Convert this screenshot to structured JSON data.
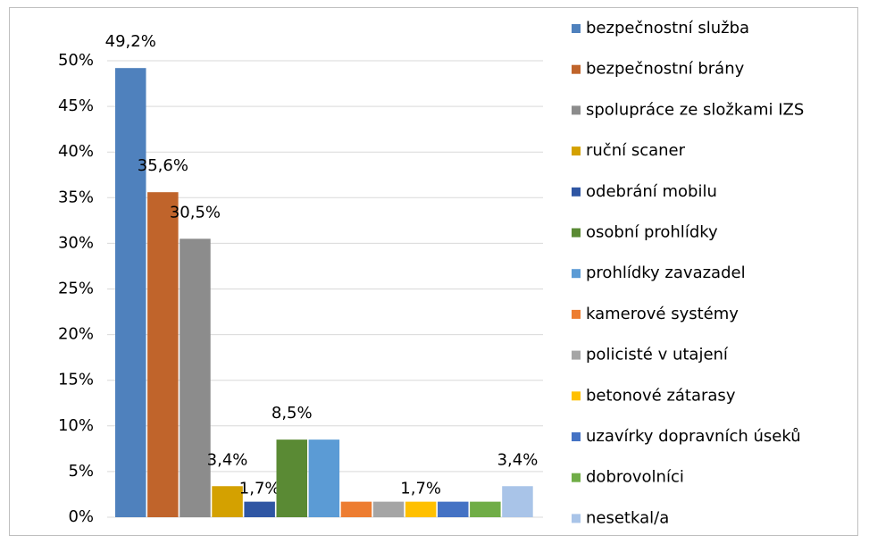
{
  "chart_data": {
    "type": "bar",
    "series": [
      {
        "name": "bezpečnostní služba",
        "color": "#4f81bd",
        "values": [
          49.2
        ],
        "value_labels": [
          "49,2%"
        ]
      },
      {
        "name": "bezpečnostní brány",
        "color": "#c0642b",
        "values": [
          35.6
        ],
        "value_labels": [
          "35,6%"
        ]
      },
      {
        "name": "spolupráce ze složkami IZS",
        "color": "#8c8c8c",
        "values": [
          30.5
        ],
        "value_labels": [
          "30,5%"
        ]
      },
      {
        "name": "ruční scaner",
        "color": "#d4a100",
        "values": [
          3.4
        ],
        "value_labels": [
          "3,4%"
        ]
      },
      {
        "name": "odebrání mobilu",
        "color": "#2f56a3",
        "values": [
          1.7
        ],
        "value_labels": [
          "1,7%"
        ]
      },
      {
        "name": "osobní prohlídky",
        "color": "#5a8a34",
        "values": [
          8.5
        ],
        "value_labels": [
          "8,5%"
        ]
      },
      {
        "name": "prohlídky zavazadel",
        "color": "#5b9bd5",
        "values": [
          8.5
        ],
        "value_labels": [
          null
        ]
      },
      {
        "name": "kamerové systémy",
        "color": "#ed7d31",
        "values": [
          1.7
        ],
        "value_labels": [
          null
        ]
      },
      {
        "name": "policisté v utajení",
        "color": "#a5a5a5",
        "values": [
          1.7
        ],
        "value_labels": [
          null
        ]
      },
      {
        "name": "betonové zátarasy",
        "color": "#ffc000",
        "values": [
          1.7
        ],
        "value_labels": [
          "1,7%"
        ]
      },
      {
        "name": "uzavírky dopravních úseků",
        "color": "#4472c4",
        "values": [
          1.7
        ],
        "value_labels": [
          null
        ]
      },
      {
        "name": "dobrovolníci",
        "color": "#70ad47",
        "values": [
          1.7
        ],
        "value_labels": [
          null
        ]
      },
      {
        "name": "nesetkal/a",
        "color": "#a9c4e8",
        "values": [
          3.4
        ],
        "value_labels": [
          "3,4%"
        ]
      }
    ],
    "ylim": [
      0,
      50
    ],
    "yticks": [
      {
        "value": 0,
        "label": "0%"
      },
      {
        "value": 5,
        "label": "5%"
      },
      {
        "value": 10,
        "label": "10%"
      },
      {
        "value": 15,
        "label": "15%"
      },
      {
        "value": 20,
        "label": "20%"
      },
      {
        "value": 25,
        "label": "25%"
      },
      {
        "value": 30,
        "label": "30%"
      },
      {
        "value": 35,
        "label": "35%"
      },
      {
        "value": 40,
        "label": "40%"
      },
      {
        "value": 45,
        "label": "45%"
      },
      {
        "value": 50,
        "label": "50%"
      }
    ],
    "grid": true,
    "legend": "right"
  }
}
